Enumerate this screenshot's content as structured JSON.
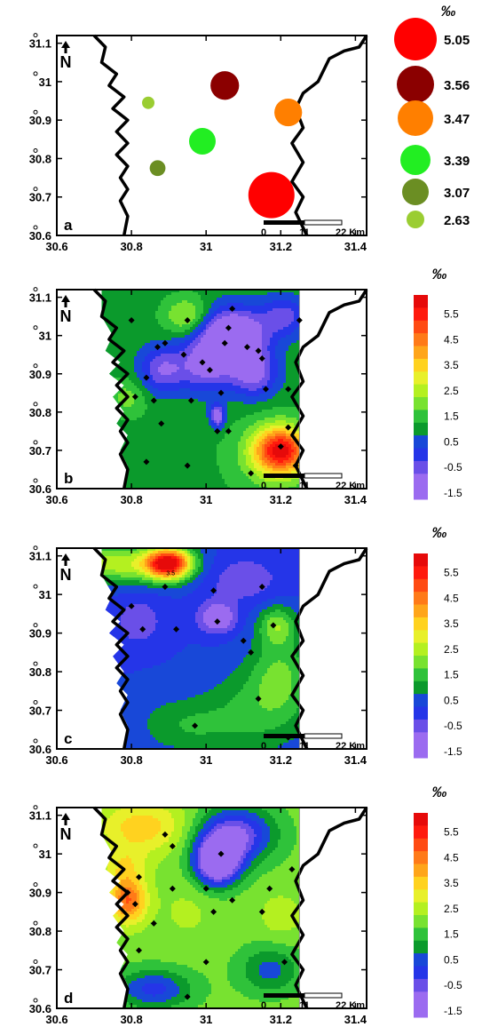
{
  "unit_symbol": "‰",
  "north_label": "N",
  "scalebar": {
    "labels": [
      "0",
      "11",
      "22 Km"
    ]
  },
  "axes": {
    "x_ticks": [
      "30.6",
      "30.8",
      "31",
      "31.2",
      "31.4"
    ],
    "y_ticks": [
      "31.1",
      "31",
      "30.9",
      "30.8",
      "30.7",
      "30.6"
    ]
  },
  "panels": [
    {
      "letter": "a",
      "type": "proportional-symbol",
      "stations": [
        {
          "lon": 31.05,
          "lat": 30.99,
          "value": "3.56",
          "color": "#8b0000"
        },
        {
          "lon": 30.845,
          "lat": 30.945,
          "value": "2.63",
          "color": "#9acd32"
        },
        {
          "lon": 31.22,
          "lat": 30.92,
          "value": "3.47",
          "color": "#ff7f00"
        },
        {
          "lon": 30.99,
          "lat": 30.845,
          "value": "3.39",
          "color": "#22ee22"
        },
        {
          "lon": 30.87,
          "lat": 30.775,
          "value": "3.07",
          "color": "#6b8e23"
        },
        {
          "lon": 31.175,
          "lat": 30.705,
          "value": "5.05",
          "color": "#ff0000"
        }
      ],
      "legend": [
        {
          "label": "5.05",
          "color": "#ff0000"
        },
        {
          "label": "3.56",
          "color": "#8b0000"
        },
        {
          "label": "3.47",
          "color": "#ff7f00"
        },
        {
          "label": "3.39",
          "color": "#22ee22"
        },
        {
          "label": "3.07",
          "color": "#6b8e23"
        },
        {
          "label": "2.63",
          "color": "#9acd32"
        }
      ]
    },
    {
      "letter": "b",
      "type": "contour",
      "stations": [
        [
          30.8,
          31.04
        ],
        [
          30.95,
          31.04
        ],
        [
          31.07,
          31.07
        ],
        [
          30.87,
          30.97
        ],
        [
          30.89,
          30.98
        ],
        [
          31.06,
          31.02
        ],
        [
          31.11,
          30.97
        ],
        [
          30.94,
          30.95
        ],
        [
          31.05,
          30.98
        ],
        [
          31.14,
          30.96
        ],
        [
          30.84,
          30.89
        ],
        [
          30.99,
          30.93
        ],
        [
          31.15,
          30.94
        ],
        [
          31.25,
          31.04
        ],
        [
          31.01,
          30.91
        ],
        [
          30.86,
          30.83
        ],
        [
          30.96,
          30.83
        ],
        [
          31.04,
          30.85
        ],
        [
          31.16,
          30.86
        ],
        [
          31.22,
          30.86
        ],
        [
          30.81,
          30.84
        ],
        [
          30.88,
          30.77
        ],
        [
          31.03,
          30.75
        ],
        [
          31.06,
          30.75
        ],
        [
          31.2,
          30.71
        ],
        [
          30.84,
          30.67
        ],
        [
          30.95,
          30.66
        ],
        [
          31.12,
          30.64
        ],
        [
          31.24,
          30.66
        ],
        [
          31.22,
          30.76
        ]
      ],
      "blobs": [
        [
          31.2,
          30.7,
          0.07,
          0.06,
          5.6
        ],
        [
          30.95,
          31.05,
          0.06,
          0.05,
          2.8
        ],
        [
          30.79,
          30.84,
          0.05,
          0.05,
          2.2
        ],
        [
          31.18,
          30.68,
          0.12,
          0.1,
          2.2
        ],
        [
          30.94,
          30.78,
          0.08,
          0.06,
          1.5
        ],
        [
          31.07,
          31.0,
          0.09,
          0.07,
          -2.0
        ],
        [
          31.0,
          30.92,
          0.08,
          0.07,
          -0.6
        ],
        [
          31.13,
          30.9,
          0.06,
          0.06,
          -0.7
        ],
        [
          30.88,
          30.91,
          0.06,
          0.06,
          -0.4
        ],
        [
          31.03,
          30.79,
          0.02,
          0.03,
          -1.2
        ],
        [
          31.21,
          31.05,
          0.06,
          0.05,
          -0.2
        ]
      ],
      "base": 1.3,
      "legend": [
        "5.5",
        "4.5",
        "3.5",
        "2.5",
        "1.5",
        "0.5",
        "-0.5",
        "-1.5"
      ]
    },
    {
      "letter": "c",
      "type": "contour",
      "contour_label": "3.5",
      "stations": [
        [
          30.89,
          31.02
        ],
        [
          31.02,
          31.01
        ],
        [
          31.15,
          31.02
        ],
        [
          30.8,
          30.97
        ],
        [
          30.83,
          30.91
        ],
        [
          30.92,
          30.91
        ],
        [
          31.03,
          30.93
        ],
        [
          31.1,
          30.88
        ],
        [
          31.18,
          30.92
        ],
        [
          31.12,
          30.85
        ],
        [
          31.14,
          30.73
        ],
        [
          30.97,
          30.66
        ],
        [
          31.22,
          30.63
        ]
      ],
      "blobs": [
        [
          30.9,
          31.08,
          0.06,
          0.04,
          6.0
        ],
        [
          30.76,
          31.08,
          0.16,
          0.05,
          2.8
        ],
        [
          31.19,
          30.92,
          0.05,
          0.05,
          2.2
        ],
        [
          31.14,
          30.7,
          0.14,
          0.11,
          1.6
        ],
        [
          31.2,
          30.8,
          0.08,
          0.1,
          1.8
        ],
        [
          30.95,
          30.66,
          0.12,
          0.07,
          1.4
        ],
        [
          30.86,
          30.7,
          0.06,
          0.1,
          0.6
        ],
        [
          31.03,
          30.94,
          0.05,
          0.04,
          -1.3
        ],
        [
          31.1,
          31.04,
          0.1,
          0.06,
          -0.4
        ],
        [
          30.82,
          30.93,
          0.07,
          0.07,
          -0.3
        ]
      ],
      "base": 0.5,
      "legend": [
        "5.5",
        "4.5",
        "3.5",
        "2.5",
        "1.5",
        "0.5",
        "-0.5",
        "-1.5"
      ]
    },
    {
      "letter": "d",
      "type": "contour",
      "stations": [
        [
          30.89,
          31.05
        ],
        [
          30.91,
          31.02
        ],
        [
          31.04,
          31.0
        ],
        [
          30.82,
          30.94
        ],
        [
          30.79,
          30.9
        ],
        [
          30.81,
          30.87
        ],
        [
          30.91,
          30.91
        ],
        [
          31.0,
          30.91
        ],
        [
          31.07,
          30.88
        ],
        [
          31.17,
          30.91
        ],
        [
          31.23,
          30.96
        ],
        [
          30.86,
          30.82
        ],
        [
          31.02,
          30.85
        ],
        [
          31.15,
          30.85
        ],
        [
          30.82,
          30.75
        ],
        [
          31.0,
          30.72
        ],
        [
          31.21,
          30.72
        ],
        [
          30.95,
          30.63
        ]
      ],
      "blobs": [
        [
          30.79,
          30.88,
          0.05,
          0.06,
          5.0
        ],
        [
          30.83,
          31.07,
          0.12,
          0.07,
          3.8
        ],
        [
          30.78,
          30.97,
          0.06,
          0.05,
          3.2
        ],
        [
          31.03,
          30.98,
          0.06,
          0.06,
          -2.2
        ],
        [
          31.08,
          31.05,
          0.1,
          0.07,
          -0.6
        ],
        [
          30.86,
          30.65,
          0.1,
          0.05,
          0.3
        ],
        [
          31.17,
          30.7,
          0.08,
          0.06,
          0.8
        ],
        [
          31.2,
          30.84,
          0.06,
          0.06,
          2.8
        ],
        [
          30.95,
          30.85,
          0.08,
          0.08,
          2.6
        ]
      ],
      "base": 2.2,
      "legend": [
        "5.5",
        "4.5",
        "3.5",
        "2.5",
        "1.5",
        "0.5",
        "-0.5",
        "-1.5"
      ]
    }
  ],
  "colorscale": [
    [
      -1.5,
      "#9b6bf0"
    ],
    [
      -0.5,
      "#6a4fe8"
    ],
    [
      0.0,
      "#2535e8"
    ],
    [
      0.5,
      "#1848d8"
    ],
    [
      1.0,
      "#0b9a2c"
    ],
    [
      1.5,
      "#2fc23a"
    ],
    [
      2.0,
      "#78e230"
    ],
    [
      2.5,
      "#b4f020"
    ],
    [
      3.0,
      "#e8f02a"
    ],
    [
      3.5,
      "#ffd21f"
    ],
    [
      4.0,
      "#ffa51a"
    ],
    [
      4.5,
      "#ff7a18"
    ],
    [
      5.0,
      "#ff4a12"
    ],
    [
      5.5,
      "#ff1a0d"
    ],
    [
      6.0,
      "#e60a0a"
    ]
  ]
}
